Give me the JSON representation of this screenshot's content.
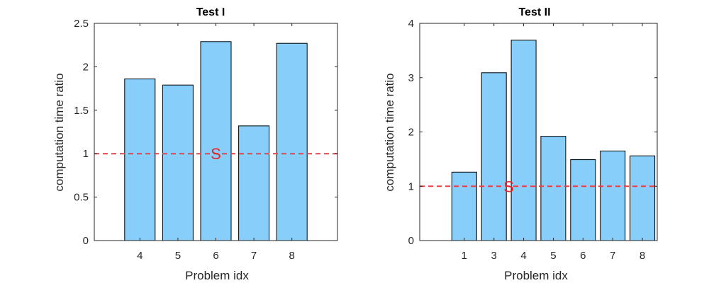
{
  "chart_data": [
    {
      "type": "bar",
      "title": "Test I",
      "xlabel": "Problem idx",
      "ylabel": "computation time ratio",
      "categories": [
        "4",
        "5",
        "6",
        "7",
        "8"
      ],
      "values": [
        1.86,
        1.79,
        2.29,
        1.32,
        2.27
      ],
      "ylim": [
        0,
        2.5
      ],
      "yticks": [
        0,
        0.5,
        1,
        1.5,
        2,
        2.5
      ],
      "ytick_labels": [
        "0",
        "0.5",
        "1",
        "1.5",
        "2",
        "2.5"
      ],
      "x_range": [
        2.8,
        9.2
      ],
      "reference_line": {
        "y": 1,
        "style": "dashed",
        "color": "#e8414a"
      },
      "marker": {
        "label": "S",
        "x": 6.0,
        "y": 1.0,
        "color": "#e8232a"
      },
      "bar_color": "#87cefa",
      "bar_edge_color": "#000000"
    },
    {
      "type": "bar",
      "title": "Test II",
      "xlabel": "Problem idx",
      "ylabel": "computation time ratio",
      "categories": [
        "1",
        "3",
        "4",
        "5",
        "6",
        "7",
        "8"
      ],
      "values": [
        1.26,
        3.09,
        3.69,
        1.92,
        1.49,
        1.65,
        1.56
      ],
      "ylim": [
        0,
        4
      ],
      "yticks": [
        0,
        1,
        2,
        3,
        4
      ],
      "ytick_labels": [
        "0",
        "1",
        "2",
        "3",
        "4"
      ],
      "x_range": [
        -0.5,
        7.5
      ],
      "reference_line": {
        "y": 1,
        "style": "dashed",
        "color": "#e8414a"
      },
      "marker": {
        "label": "S",
        "x": 2.5,
        "y": 1.0,
        "color": "#e8232a"
      },
      "bar_color": "#87cefa",
      "bar_edge_color": "#000000"
    }
  ]
}
